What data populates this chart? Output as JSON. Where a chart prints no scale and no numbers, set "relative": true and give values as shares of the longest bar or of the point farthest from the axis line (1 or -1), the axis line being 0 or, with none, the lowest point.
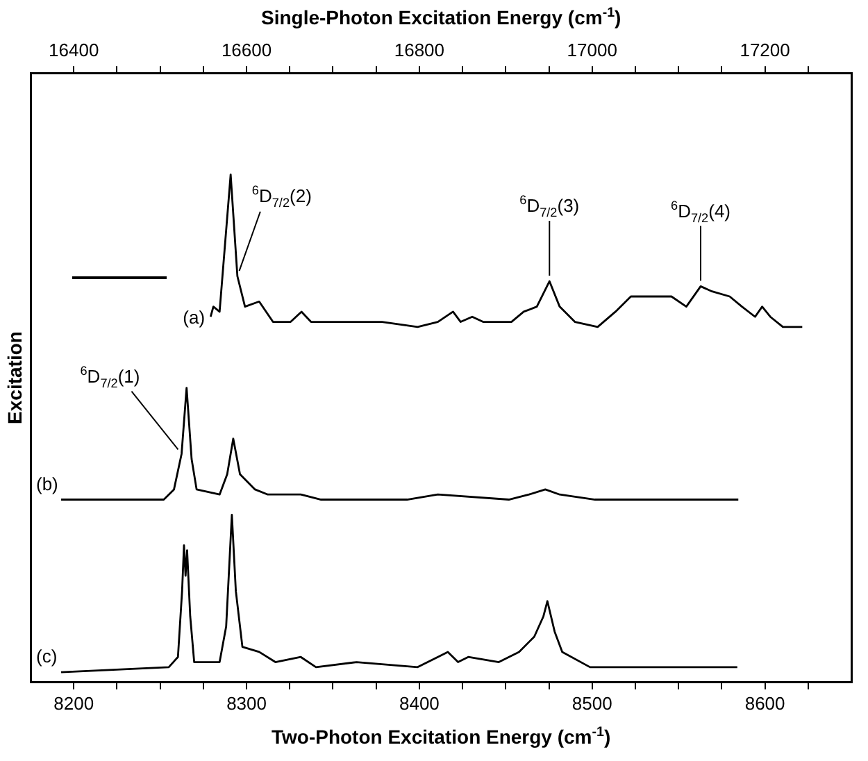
{
  "chart_data": {
    "type": "line",
    "relative": true,
    "legend": false,
    "grid": false,
    "xlabel": "Two-Photon Excitation Energy  (cm$^{-1}$)",
    "x2label": "Single-Photon Excitation Energy  (cm$^{-1}$)",
    "ylabel": "Excitation",
    "xlim": [
      8175,
      8650
    ],
    "xticks": [
      8200,
      {
        "value": 8225,
        "label": null
      },
      {
        "value": 8250,
        "label": null
      },
      {
        "value": 8275,
        "label": null
      },
      8300,
      {
        "value": 8325,
        "label": null
      },
      {
        "value": 8350,
        "label": null
      },
      {
        "value": 8375,
        "label": null
      },
      8400,
      {
        "value": 8425,
        "label": null
      },
      {
        "value": 8450,
        "label": null
      },
      {
        "value": 8475,
        "label": null
      },
      8500,
      {
        "value": 8525,
        "label": null
      },
      {
        "value": 8550,
        "label": null
      },
      {
        "value": 8575,
        "label": null
      },
      8600,
      {
        "value": 8625,
        "label": null
      }
    ],
    "x2lim": [
      16350,
      17300
    ],
    "x2ticks": [
      16400,
      {
        "value": 16450,
        "label": null
      },
      {
        "value": 16500,
        "label": null
      },
      {
        "value": 16550,
        "label": null
      },
      16600,
      {
        "value": 16650,
        "label": null
      },
      {
        "value": 16700,
        "label": null
      },
      {
        "value": 16750,
        "label": null
      },
      16800,
      {
        "value": 16850,
        "label": null
      },
      {
        "value": 16900,
        "label": null
      },
      {
        "value": 16950,
        "label": null
      },
      17000,
      {
        "value": 17050,
        "label": null
      },
      {
        "value": 17100,
        "label": null
      },
      {
        "value": 17150,
        "label": null
      },
      17200,
      {
        "value": 17250,
        "label": null
      }
    ],
    "series": [
      {
        "name": "(a)",
        "color": "#000000",
        "x": [
          8279.2,
          8280.8,
          8284.4,
          8290.8,
          8294.7,
          8299.1,
          8307.3,
          8315.3,
          8325.5,
          8331.8,
          8337.3,
          8363.7,
          8378.4,
          8399.0,
          8410.7,
          8419.5,
          8423.9,
          8430.6,
          8436.9,
          8453.3,
          8460.4,
          8468.0,
          8475.3,
          8481.2,
          8490.0,
          8503.2,
          8513.5,
          8522.4,
          8537.0,
          8545.9,
          8554.5,
          8562.8,
          8569.4,
          8579.6,
          8586.7,
          8594.3,
          8598.4,
          8603.1,
          8610.4,
          8621.6
        ],
        "values": [
          0.72,
          0.74,
          0.73,
          1.0,
          0.8,
          0.74,
          0.75,
          0.71,
          0.71,
          0.73,
          0.71,
          0.71,
          0.71,
          0.7,
          0.71,
          0.73,
          0.71,
          0.72,
          0.71,
          0.71,
          0.73,
          0.74,
          0.79,
          0.74,
          0.71,
          0.7,
          0.73,
          0.76,
          0.76,
          0.76,
          0.74,
          0.78,
          0.77,
          0.76,
          0.74,
          0.72,
          0.74,
          0.72,
          0.7,
          0.7
        ]
      },
      {
        "name": "(b)",
        "color": "#000000",
        "x": [
          8192.7,
          8252.1,
          8258.0,
          8262.4,
          8265.3,
          8268.2,
          8271.1,
          8284.4,
          8288.8,
          8292.3,
          8296.2,
          8304.9,
          8312.3,
          8322.6,
          8331.4,
          8343.1,
          8392.9,
          8410.7,
          8451.8,
          8463.5,
          8472.9,
          8481.2,
          8501.7,
          8539.9,
          8584.6
        ],
        "values": [
          0.36,
          0.36,
          0.38,
          0.45,
          0.58,
          0.44,
          0.38,
          0.37,
          0.41,
          0.48,
          0.41,
          0.38,
          0.37,
          0.37,
          0.37,
          0.36,
          0.36,
          0.37,
          0.36,
          0.37,
          0.38,
          0.37,
          0.36,
          0.36,
          0.36
        ]
      },
      {
        "name": "(c)",
        "color": "#000000",
        "x": [
          8192.7,
          8255.0,
          8260.3,
          8262.7,
          8263.8,
          8264.7,
          8265.6,
          8267.4,
          8269.7,
          8274.1,
          8284.4,
          8288.2,
          8291.5,
          8293.8,
          8297.6,
          8307.3,
          8316.7,
          8331.4,
          8340.2,
          8363.7,
          8399.0,
          8410.7,
          8416.5,
          8422.4,
          8428.3,
          8446.0,
          8457.7,
          8466.5,
          8471.8,
          8474.1,
          8478.3,
          8482.7,
          8498.8,
          8539.9,
          8561.9,
          8584.0
        ],
        "values": [
          0.02,
          0.03,
          0.05,
          0.18,
          0.27,
          0.21,
          0.26,
          0.13,
          0.04,
          0.04,
          0.04,
          0.11,
          0.33,
          0.18,
          0.07,
          0.06,
          0.04,
          0.05,
          0.03,
          0.04,
          0.03,
          0.05,
          0.06,
          0.04,
          0.05,
          0.04,
          0.06,
          0.09,
          0.13,
          0.16,
          0.1,
          0.06,
          0.03,
          0.03,
          0.03,
          0.03
        ]
      }
    ],
    "annotations": [
      {
        "text": "$^{6}$D$_{7/2}$(1)",
        "x": 8262.4,
        "y": 0.45
      },
      {
        "text": "$^{6}$D$_{7/2}$(2)",
        "x": 8294.7,
        "y": 0.8
      },
      {
        "text": "$^{6}$D$_{7/2}$(3)",
        "x": 8475.3,
        "y": 0.79
      },
      {
        "text": "$^{6}$D$_{7/2}$(4)",
        "x": 8562.8,
        "y": 0.78
      }
    ]
  }
}
